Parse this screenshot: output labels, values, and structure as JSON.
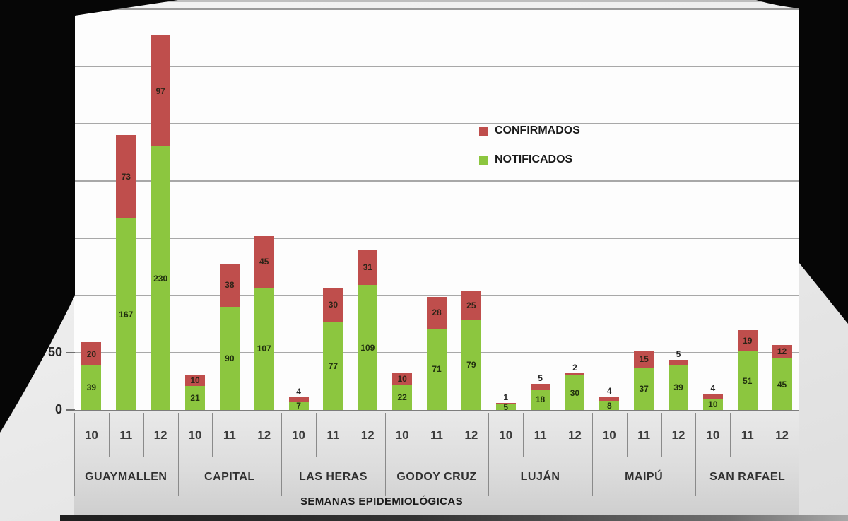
{
  "colors": {
    "confirmados": "#bf4e4c",
    "notificados": "#8cc63f",
    "plot_background": "#fdfdfd",
    "gridline": "#999999",
    "slide_background": "#ececec",
    "photo_surround": "#0a0a0a"
  },
  "chart_data": {
    "type": "bar",
    "stacked": true,
    "title": "",
    "xlabel": "SEMANAS EPIDEMIOLÓGICAS",
    "ylabel": "",
    "ylim": [
      0,
      350
    ],
    "gridline_step": 50,
    "grid": true,
    "visible_yticks": [
      {
        "label": "50",
        "value": 50
      },
      {
        "label": "0",
        "value": 0
      }
    ],
    "legend_position": "center-right",
    "legend": [
      {
        "label": "CONFIRMADOS",
        "color": "#bf4e4c",
        "series": "confirmados"
      },
      {
        "label": "NOTIFICADOS",
        "color": "#8cc63f",
        "series": "notificados"
      }
    ],
    "week_tick_labels": [
      "10",
      "11",
      "12"
    ],
    "groups": [
      {
        "name": "GUAYMALLEN",
        "weeks": [
          "10",
          "11",
          "12"
        ],
        "notificados": [
          39,
          167,
          230
        ],
        "confirmados": [
          20,
          73,
          97
        ]
      },
      {
        "name": "CAPITAL",
        "weeks": [
          "10",
          "11",
          "12"
        ],
        "notificados": [
          21,
          90,
          107
        ],
        "confirmados": [
          10,
          38,
          45
        ]
      },
      {
        "name": "LAS HERAS",
        "weeks": [
          "10",
          "11",
          "12"
        ],
        "notificados": [
          7,
          77,
          109
        ],
        "confirmados": [
          4,
          30,
          31
        ]
      },
      {
        "name": "GODOY CRUZ",
        "weeks": [
          "10",
          "11",
          "12"
        ],
        "notificados": [
          22,
          71,
          79
        ],
        "confirmados": [
          10,
          28,
          25
        ]
      },
      {
        "name": "LUJÁN",
        "weeks": [
          "10",
          "11",
          "12"
        ],
        "notificados": [
          5,
          18,
          30
        ],
        "confirmados": [
          1,
          5,
          2
        ]
      },
      {
        "name": "MAIPÚ",
        "weeks": [
          "10",
          "11",
          "12"
        ],
        "notificados": [
          8,
          37,
          39
        ],
        "confirmados": [
          4,
          15,
          5
        ]
      },
      {
        "name": "SAN RAFAEL",
        "weeks": [
          "10",
          "11",
          "12"
        ],
        "notificados": [
          10,
          51,
          45
        ],
        "confirmados": [
          4,
          19,
          12
        ]
      }
    ]
  }
}
